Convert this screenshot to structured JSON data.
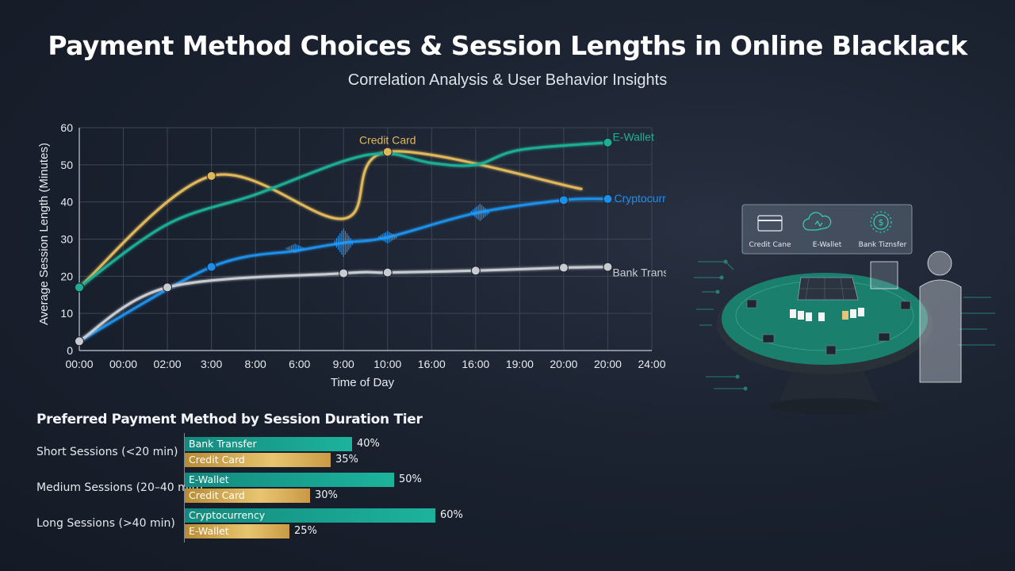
{
  "title": "Payment Method Choices & Session Lengths in Online Blacklack",
  "subtitle": "Correlation Analysis & User Behavior Insights",
  "chart_data": [
    {
      "type": "line",
      "title": "",
      "xlabel": "Time of Day",
      "ylabel": "Average Session Length (Minutes)",
      "ylim": [
        0,
        60
      ],
      "yticks": [
        0,
        10,
        20,
        30,
        40,
        50,
        60
      ],
      "categories": [
        "00:00",
        "00:00",
        "02:00",
        "3:00",
        "8:00",
        "6:00",
        "9:00",
        "10:00",
        "16:00",
        "16:00",
        "19:00",
        "20:00",
        "20:00",
        "24:00"
      ],
      "grid": true,
      "series": [
        {
          "name": "Credit Card",
          "color": "#e0b85a",
          "points": [
            [
              0,
              17
            ],
            [
              3,
              47
            ],
            [
              6,
              35.5
            ],
            [
              7,
              53.5
            ],
            [
              11.4,
              43.5
            ]
          ],
          "markers": [
            [
              0,
              17
            ],
            [
              3,
              47
            ],
            [
              7,
              53.5
            ]
          ]
        },
        {
          "name": "E-Wallet",
          "color": "#1fae95",
          "points": [
            [
              0,
              17
            ],
            [
              2,
              34
            ],
            [
              4,
              42
            ],
            [
              6,
              51
            ],
            [
              7,
              53
            ],
            [
              8,
              50.5
            ],
            [
              9,
              50
            ],
            [
              10,
              54
            ],
            [
              12,
              56
            ]
          ],
          "markers": [
            [
              0,
              17
            ],
            [
              12,
              56
            ]
          ]
        },
        {
          "name": "Cryptocurrency",
          "color": "#1e8fe8",
          "points": [
            [
              0,
              2.5
            ],
            [
              3,
              22.5
            ],
            [
              5,
              27
            ],
            [
              6,
              29
            ],
            [
              7,
              30.5
            ],
            [
              9,
              37
            ],
            [
              11,
              40.5
            ],
            [
              12,
              40.8
            ]
          ],
          "markers": [
            [
              3,
              22.5
            ],
            [
              11,
              40.5
            ],
            [
              12,
              40.8
            ]
          ]
        },
        {
          "name": "Bank Transfer",
          "color": "#c8ccd1",
          "points": [
            [
              0,
              2.5
            ],
            [
              2,
              17
            ],
            [
              6,
              20.8
            ],
            [
              7,
              21
            ],
            [
              9,
              21.5
            ],
            [
              11,
              22.3
            ],
            [
              12,
              22.5
            ]
          ],
          "markers": [
            [
              0,
              2.5
            ],
            [
              2,
              17
            ],
            [
              6,
              20.8
            ],
            [
              7,
              21
            ],
            [
              9,
              21.5
            ],
            [
              11,
              22.3
            ],
            [
              12,
              22.5
            ]
          ]
        }
      ]
    },
    {
      "type": "bar",
      "orientation": "horizontal",
      "title": "Preferred Payment Method by Session Duration Tier",
      "xmax": 100,
      "tiers": [
        {
          "label": "Short Sessions (<20 min)",
          "bars": [
            {
              "method": "Bank Transfer",
              "value": 40,
              "label": "40%",
              "color": "teal"
            },
            {
              "method": "Credit Card",
              "value": 35,
              "label": "35%",
              "color": "gold"
            }
          ]
        },
        {
          "label": "Medium Sessions (20–40 min)",
          "bars": [
            {
              "method": "E-Wallet",
              "value": 50,
              "label": "50%",
              "color": "teal"
            },
            {
              "method": "Credit Card",
              "value": 30,
              "label": "30%",
              "color": "gold"
            }
          ]
        },
        {
          "label": "Long Sessions (>40 min)",
          "bars": [
            {
              "method": "Cryptocurrency",
              "value": 60,
              "label": "60%",
              "color": "teal"
            },
            {
              "method": "E-Wallet",
              "value": 25,
              "label": "25%",
              "color": "gold"
            }
          ]
        }
      ]
    }
  ],
  "illustration": {
    "panel_items": [
      {
        "label": "Credit Cane",
        "icon": "credit-card-icon"
      },
      {
        "label": "E-Wallet",
        "icon": "cloud-wallet-icon"
      },
      {
        "label": "Bank Tiznsfer",
        "icon": "bank-coin-icon"
      }
    ]
  }
}
